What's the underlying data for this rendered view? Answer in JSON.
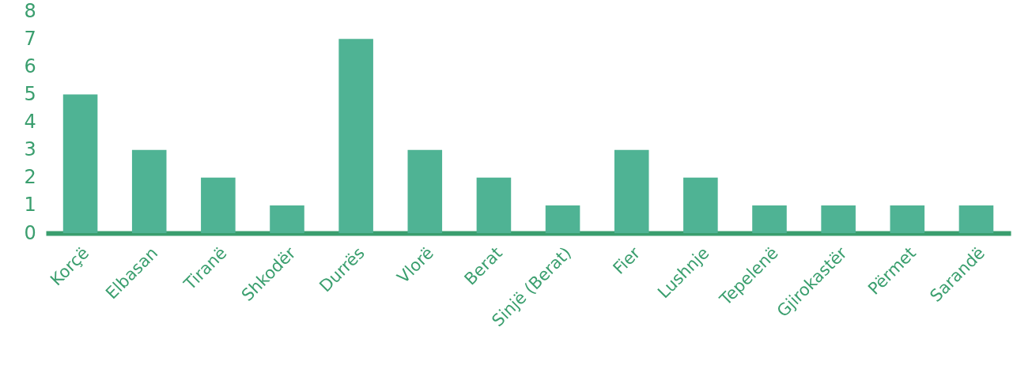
{
  "chart_data": {
    "type": "bar",
    "categories": [
      "Korçë",
      "Elbasan",
      "Tiranë",
      "Shkodër",
      "Durrës",
      "Vlorë",
      "Berat",
      "Sinjë (Berat)",
      "Fier",
      "Lushnje",
      "Tepelenë",
      "Gjirokastër",
      "Përmet",
      "Sarandë"
    ],
    "values": [
      5,
      3,
      2,
      1,
      7,
      3,
      2,
      1,
      3,
      2,
      1,
      1,
      1,
      1
    ],
    "color": "#4fb394",
    "ylim": [
      0,
      8
    ],
    "yticks": [
      0,
      1,
      2,
      3,
      4,
      5,
      6,
      7,
      8
    ],
    "grid": false
  }
}
